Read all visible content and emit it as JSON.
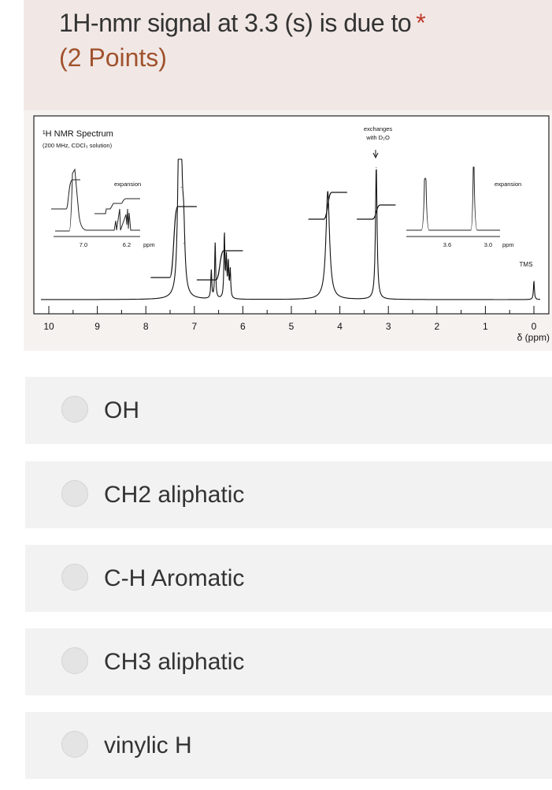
{
  "question": {
    "title": "1H-nmr signal at 3.3 (s) is due to",
    "required_marker": "*",
    "points": "(2 Points)"
  },
  "spectrum": {
    "title": "¹H NMR Spectrum",
    "subtitle": "(200 MHz, CDCl₃ solution)",
    "annotation_d2o_line1": "exchanges",
    "annotation_d2o_line2": "with D₂O",
    "tms_label": "TMS",
    "left_inset": {
      "label": "expansion",
      "ticks": [
        "7.0",
        "6.2"
      ],
      "unit": "ppm"
    },
    "right_inset": {
      "label": "expansion",
      "ticks": [
        "3.6",
        "3.0"
      ],
      "unit": "ppm"
    },
    "xlabel": "δ (ppm)"
  },
  "chart_data": {
    "type": "line",
    "title": "¹H NMR Spectrum",
    "xlabel": "δ (ppm)",
    "xlim": [
      10,
      0
    ],
    "x_reversed": true,
    "tick_labels": [
      "10",
      "9",
      "8",
      "7",
      "6",
      "5",
      "4",
      "3",
      "2",
      "1",
      "0"
    ],
    "grid": false,
    "peaks": [
      {
        "ppm": 7.32,
        "intensity": 100,
        "width": 0.03
      },
      {
        "ppm": 7.27,
        "intensity": 80,
        "width": 0.03
      },
      {
        "ppm": 7.22,
        "intensity": 40,
        "width": 0.03
      },
      {
        "ppm": 6.65,
        "intensity": 20,
        "width": 0.012
      },
      {
        "ppm": 6.57,
        "intensity": 40,
        "width": 0.012
      },
      {
        "ppm": 6.38,
        "intensity": 45,
        "width": 0.012
      },
      {
        "ppm": 6.34,
        "intensity": 28,
        "width": 0.012
      },
      {
        "ppm": 6.3,
        "intensity": 24,
        "width": 0.012
      },
      {
        "ppm": 6.26,
        "intensity": 20,
        "width": 0.012
      },
      {
        "ppm": 4.25,
        "intensity": 77,
        "width": 0.045
      },
      {
        "ppm": 3.25,
        "intensity": 94,
        "width": 0.02
      },
      {
        "ppm": 0.0,
        "intensity": 13,
        "width": 0.012
      }
    ],
    "integrals": [
      {
        "from": 7.9,
        "to": 6.95,
        "step": 90
      },
      {
        "from": 6.95,
        "to": 6.0,
        "step": 37
      },
      {
        "from": 4.65,
        "to": 3.85,
        "step": 34
      },
      {
        "from": 3.65,
        "to": 2.85,
        "step": 18
      }
    ]
  },
  "options": [
    {
      "label": "OH"
    },
    {
      "label": "CH2 aliphatic"
    },
    {
      "label": "C-H Aromatic"
    },
    {
      "label": "CH3 aliphatic"
    },
    {
      "label": "vinylic H"
    }
  ]
}
